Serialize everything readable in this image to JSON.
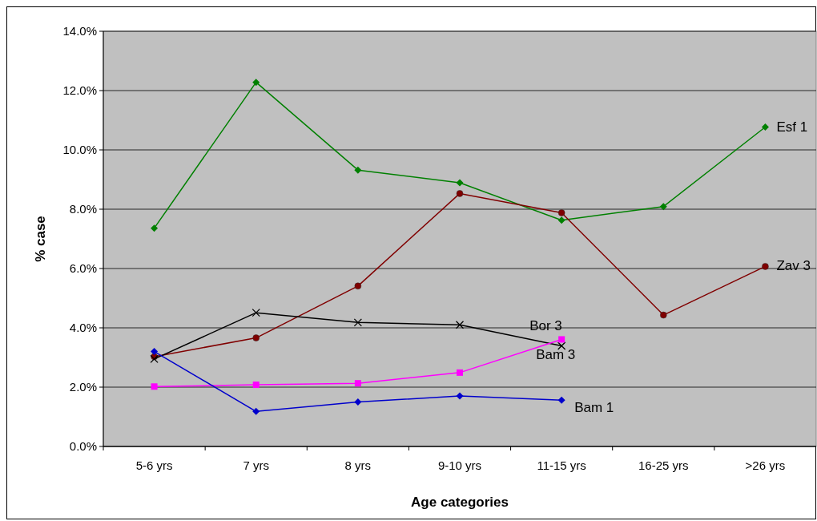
{
  "chart_data": {
    "type": "line",
    "xlabel": "Age categories",
    "ylabel": "% case",
    "categories": [
      "5-6 yrs",
      "7 yrs",
      "8 yrs",
      "9-10 yrs",
      "11-15 yrs",
      "16-25 yrs",
      ">26 yrs"
    ],
    "ylim": [
      0,
      14
    ],
    "yticks": [
      {
        "value": 0,
        "label": "0.0%"
      },
      {
        "value": 2,
        "label": "2.0%"
      },
      {
        "value": 4,
        "label": "4.0%"
      },
      {
        "value": 6,
        "label": "6.0%"
      },
      {
        "value": 8,
        "label": "8.0%"
      },
      {
        "value": 10,
        "label": "10.0%"
      },
      {
        "value": 12,
        "label": "12.0%"
      },
      {
        "value": 14,
        "label": "14.0%"
      }
    ],
    "grid": "y",
    "legend": false,
    "series": [
      {
        "name": "Esf 1",
        "color": "#008000",
        "marker": "diamond",
        "values": [
          7.36,
          12.28,
          9.32,
          8.89,
          7.63,
          8.09,
          10.77
        ]
      },
      {
        "name": "Zav 3",
        "color": "#800000",
        "marker": "circle",
        "values": [
          3.03,
          3.66,
          5.41,
          8.53,
          7.88,
          4.43,
          6.07
        ]
      },
      {
        "name": "Bor 3",
        "color": "#000000",
        "marker": "cross",
        "values": [
          2.95,
          4.51,
          4.18,
          4.1,
          3.39,
          null,
          null
        ]
      },
      {
        "name": "Bam 3",
        "color": "#ff00ff",
        "marker": "square",
        "values": [
          2.02,
          2.08,
          2.13,
          2.49,
          3.61,
          null,
          null
        ]
      },
      {
        "name": "Bam 1",
        "color": "#0000cc",
        "marker": "diamond",
        "values": [
          3.2,
          1.18,
          1.5,
          1.7,
          1.56,
          null,
          null
        ]
      }
    ]
  }
}
